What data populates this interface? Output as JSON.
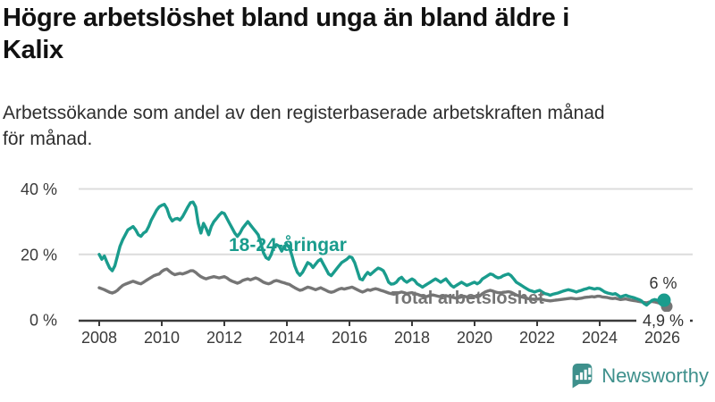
{
  "title": "Högre arbetslöshet bland unga än bland äldre i Kalix",
  "subtitle": "Arbetssökande som andel av den registerbaserade arbetskraften månad för månad.",
  "branding": {
    "name": "Newsworthy",
    "icon": "newsworthy-speech-bubble-chart-icon",
    "color": "#3e908c"
  },
  "chart_data": {
    "type": "line",
    "title": "Högre arbetslöshet bland unga än bland äldre i Kalix",
    "frequency": "monthly",
    "x_start_year": 2008,
    "x_end_year": 2026,
    "grid": "horizontal",
    "x_axis": {
      "ticks": [
        {
          "label": "2008",
          "year": 2008
        },
        {
          "label": "2010",
          "year": 2010
        },
        {
          "label": "2012",
          "year": 2012
        },
        {
          "label": "2014",
          "year": 2014
        },
        {
          "label": "2016",
          "year": 2016
        },
        {
          "label": "2018",
          "year": 2018
        },
        {
          "label": "2020",
          "year": 2020
        },
        {
          "label": "2022",
          "year": 2022
        },
        {
          "label": "2024",
          "year": 2024
        },
        {
          "label": "2026",
          "year": 2026
        }
      ]
    },
    "y_axis": {
      "unit": "%",
      "ylim": [
        0,
        42
      ],
      "ticks": [
        {
          "label": "0 %",
          "value": 0
        },
        {
          "label": "20 %",
          "value": 20
        },
        {
          "label": "40 %",
          "value": 40
        }
      ]
    },
    "series": [
      {
        "id": "youth",
        "name": "18-24-åringar",
        "color": "#1a9c8d",
        "end_label": "6 %",
        "final_value": 6,
        "values": [
          20,
          18.5,
          19.5,
          17.5,
          15.8,
          15,
          16.5,
          19.5,
          22.5,
          24.5,
          26,
          27.5,
          28,
          28.5,
          27.5,
          26,
          25.5,
          26.5,
          27,
          28.5,
          30.5,
          32,
          33.5,
          34.5,
          35,
          35.3,
          34,
          31.5,
          30.2,
          30.8,
          31,
          30.5,
          31.5,
          33,
          34.5,
          35.8,
          36,
          34.5,
          29.5,
          26.5,
          29.5,
          28,
          26,
          28.5,
          30,
          31,
          32,
          32.8,
          32.5,
          31,
          29.5,
          28,
          26.5,
          25.5,
          26.5,
          28,
          29,
          30,
          29,
          28,
          27,
          26,
          23.5,
          20.5,
          19,
          18.5,
          20,
          22.5,
          23,
          22.5,
          21,
          22.5,
          23,
          22,
          19.5,
          16.5,
          14.5,
          13.6,
          14.5,
          16,
          17.5,
          17,
          16,
          17,
          18,
          18.5,
          17,
          15.5,
          14,
          13.5,
          14.5,
          15.5,
          16.5,
          17.5,
          18,
          18.5,
          19.3,
          19,
          17.5,
          15,
          12.5,
          12.2,
          13.5,
          14.5,
          13.8,
          14.5,
          15.2,
          15.8,
          15.5,
          15,
          13.5,
          11.5,
          10.9,
          11,
          11.5,
          12.5,
          13,
          12,
          11.5,
          12,
          12.5,
          12,
          11,
          10.5,
          10,
          10.5,
          11,
          11.5,
          12,
          12.5,
          12,
          11.5,
          12,
          12.5,
          11.5,
          10.5,
          10,
          10.5,
          11,
          11.5,
          11,
          10.5,
          10.8,
          11.2,
          11.5,
          11,
          11.5,
          12.5,
          13,
          13.5,
          14,
          13.8,
          13.2,
          12.8,
          13,
          13.5,
          13.8,
          14,
          13.5,
          12.5,
          11.5,
          11,
          10.5,
          10,
          9.5,
          9,
          8.8,
          8.5,
          8.8,
          9,
          8.5,
          8,
          7.8,
          7.5,
          7.8,
          8,
          8.2,
          8.5,
          8.8,
          9,
          9.2,
          9,
          8.8,
          8.5,
          8.8,
          9,
          9.3,
          9.5,
          9.8,
          9.6,
          9.4,
          9.6,
          9.5,
          9,
          8.5,
          8.2,
          8,
          7.8,
          8,
          7.5,
          7,
          7.3,
          7.5,
          7.2,
          7,
          6.8,
          6.5,
          6.2,
          5.8,
          5,
          4.5,
          5.2,
          5.9,
          6.2,
          6,
          5.8,
          6
        ]
      },
      {
        "id": "total",
        "name": "Total arbetslöshet",
        "color": "#757575",
        "end_label": "4,9 %",
        "final_value": 4.9,
        "values": [
          9.8,
          9.5,
          9.2,
          8.8,
          8.4,
          8.2,
          8.5,
          9,
          9.8,
          10.5,
          10.9,
          11.2,
          11.5,
          11.8,
          11.5,
          11.2,
          11,
          11.5,
          12,
          12.5,
          13,
          13.5,
          13.8,
          14,
          14.8,
          15.3,
          15.5,
          14.8,
          14.2,
          13.8,
          14,
          14.2,
          14,
          14.3,
          14.6,
          15,
          15,
          14.5,
          13.8,
          13.2,
          12.8,
          12.5,
          12.8,
          13,
          13.2,
          13,
          12.8,
          13,
          13.2,
          12.8,
          12.2,
          11.8,
          11.5,
          11.2,
          11.5,
          12,
          12.3,
          12.5,
          12.2,
          12.5,
          12.8,
          12.5,
          12,
          11.5,
          11.2,
          11,
          11.3,
          11.8,
          12,
          11.8,
          11.5,
          11.3,
          11,
          10.8,
          10.3,
          9.8,
          9.4,
          9,
          9.2,
          9.6,
          10,
          9.8,
          9.5,
          9.2,
          9.5,
          9.8,
          9.4,
          9,
          8.6,
          8.4,
          8.6,
          9,
          9.4,
          9.6,
          9.4,
          9.6,
          9.8,
          10,
          9.6,
          9.2,
          8.8,
          8.5,
          8.8,
          9.2,
          9,
          9.3,
          9.5,
          9.3,
          9,
          8.8,
          8.5,
          8.2,
          8,
          7.8,
          8,
          8.3,
          8.5,
          8.3,
          8,
          8.2,
          8.3,
          8,
          7.8,
          7.5,
          7.2,
          7,
          7.2,
          7.5,
          7.6,
          7.4,
          7.2,
          7,
          7.2,
          7.4,
          7.2,
          7,
          6.8,
          6.6,
          6.8,
          7,
          7.2,
          7,
          6.9,
          7,
          7.2,
          7,
          7.3,
          8,
          8.5,
          8.8,
          9,
          8.8,
          8.5,
          8.3,
          8.2,
          8.4,
          8.5,
          8.6,
          8.4,
          8,
          7.6,
          7.3,
          7,
          6.8,
          6.6,
          6.4,
          6.3,
          6.2,
          6.3,
          6.4,
          6.2,
          6,
          5.9,
          5.8,
          5.9,
          6,
          6.1,
          6.2,
          6.3,
          6.4,
          6.5,
          6.6,
          6.5,
          6.4,
          6.5,
          6.6,
          6.8,
          6.9,
          7,
          7.1,
          7,
          7.2,
          7.2,
          7,
          6.9,
          6.8,
          6.6,
          6.5,
          6.6,
          6.4,
          6.2,
          6.3,
          6.4,
          6.2,
          6,
          5.9,
          5.8,
          5.6,
          5.5,
          5.3,
          5.2,
          5.4,
          5.6,
          5.5,
          5.3,
          5.1,
          4.9
        ]
      }
    ],
    "legend_position": "inline-labels"
  }
}
